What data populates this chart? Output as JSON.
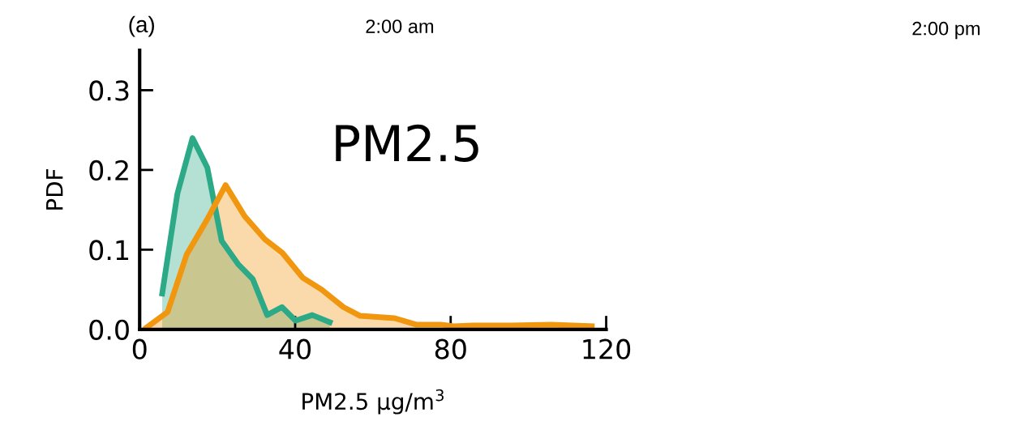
{
  "chart_data": {
    "type": "area",
    "title": "(a)",
    "xlabel": "PM2.5 μg/m$^{3}$",
    "ylabel": "PDF",
    "annotations": [
      "2:00 am",
      "2:00 pm",
      "PM2.5"
    ],
    "xlim": [
      0,
      120
    ],
    "ylim": [
      0,
      0.35
    ],
    "xticks": [
      0,
      40,
      80,
      120
    ],
    "yticks": [
      {
        "value": 0,
        "label": "0.0"
      },
      {
        "value": 0.1,
        "label": "0.1"
      },
      {
        "value": 0.2,
        "label": "0.2"
      },
      {
        "value": 0.3,
        "label": "0.3"
      }
    ],
    "grid": false,
    "legend": false,
    "series": [
      {
        "color": "#2ca987",
        "x": [
          5.8,
          9.7,
          13.6,
          17.4,
          21.1,
          25.3,
          29.1,
          32.8,
          36.6,
          40.1,
          44.4,
          48.9
        ],
        "values": [
          0.045,
          0.17,
          0.24,
          0.203,
          0.111,
          0.082,
          0.063,
          0.018,
          0.028,
          0.011,
          0.018,
          0.009
        ]
      },
      {
        "color": "#f0960f",
        "x": [
          1.7,
          7.2,
          12.1,
          17.6,
          22.1,
          27,
          32.2,
          36.7,
          41.9,
          46.8,
          52.4,
          56.7,
          65.6,
          71.1,
          77.4,
          80.8,
          85.7,
          95.4,
          105.8,
          116.3
        ],
        "values": [
          0.002,
          0.022,
          0.094,
          0.14,
          0.181,
          0.142,
          0.113,
          0.096,
          0.065,
          0.05,
          0.028,
          0.017,
          0.014,
          0.006,
          0.006,
          0.004,
          0.005,
          0.005,
          0.006,
          0.004
        ]
      }
    ]
  }
}
